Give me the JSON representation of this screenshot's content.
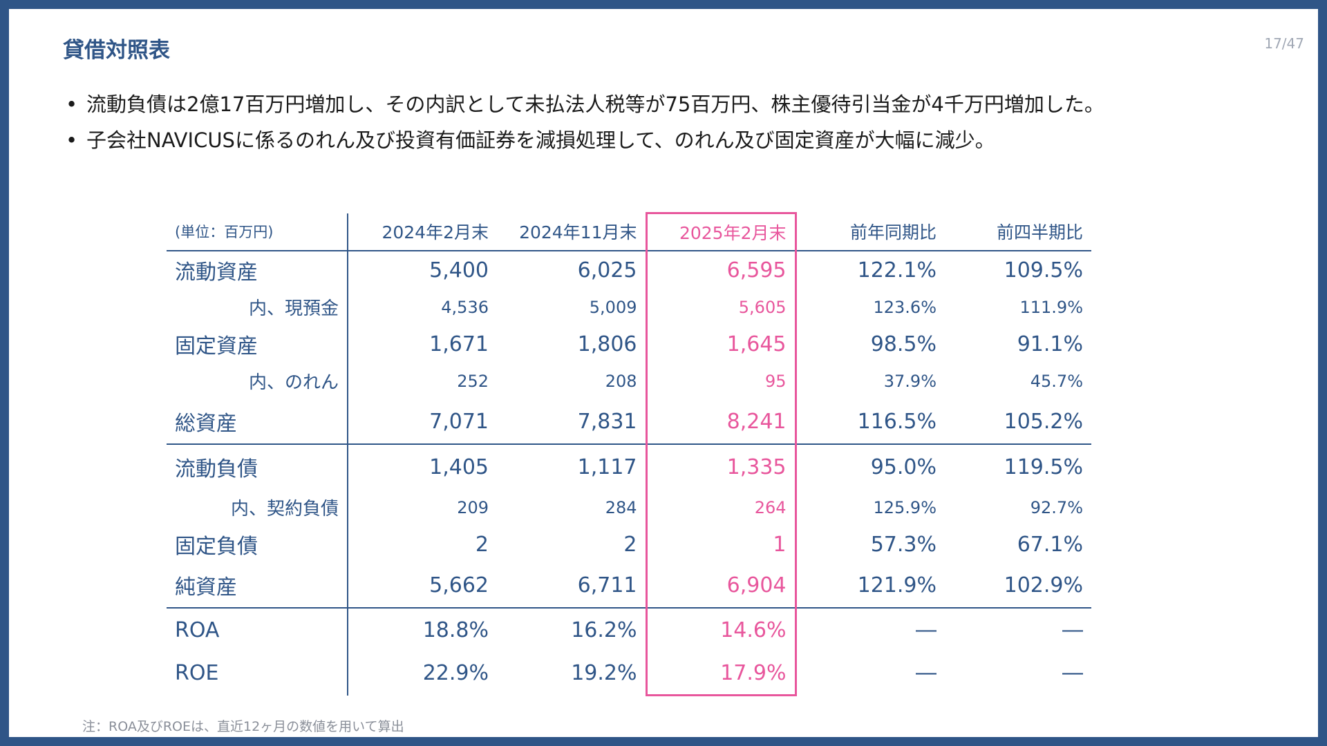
{
  "title": "貸借対照表",
  "page_number": "17/47",
  "bullets": [
    "流動負債は2億17百万円増加し、その内訳として未払法人税等が75百万円、株主優待引当金が4千万円増加した。",
    "子会社NAVICUSに係るのれん及び投資有価証券を減損処理して、のれん及び固定資産が大幅に減少。"
  ],
  "table": {
    "header": [
      "(単位：百万円)",
      "2024年2月末",
      "2024年11月末",
      "2025年2月末",
      "前年同期比",
      "前四半期比"
    ],
    "highlight_color": "#e8569c",
    "rows": [
      {
        "label": "流動資産",
        "values": [
          "5,400",
          "6,025",
          "6,595",
          "122.1%",
          "109.5%"
        ]
      },
      {
        "label": "内、現預金",
        "values": [
          "4,536",
          "5,009",
          "5,605",
          "123.6%",
          "111.9%"
        ]
      },
      {
        "label": "固定資産",
        "values": [
          "1,671",
          "1,806",
          "1,645",
          "98.5%",
          "91.1%"
        ]
      },
      {
        "label": "内、のれん",
        "values": [
          "252",
          "208",
          "95",
          "37.9%",
          "45.7%"
        ]
      },
      {
        "label": "総資産",
        "values": [
          "7,071",
          "7,831",
          "8,241",
          "116.5%",
          "105.2%"
        ]
      },
      {
        "label": "流動負債",
        "values": [
          "1,405",
          "1,117",
          "1,335",
          "95.0%",
          "119.5%"
        ]
      },
      {
        "label": "内、契約負債",
        "values": [
          "209",
          "284",
          "264",
          "125.9%",
          "92.7%"
        ]
      },
      {
        "label": "固定負債",
        "values": [
          "2",
          "2",
          "1",
          "57.3%",
          "67.1%"
        ]
      },
      {
        "label": "純資産",
        "values": [
          "5,662",
          "6,711",
          "6,904",
          "121.9%",
          "102.9%"
        ]
      },
      {
        "label": "ROA",
        "values": [
          "18.8%",
          "16.2%",
          "14.6%",
          "―",
          "―"
        ]
      },
      {
        "label": "ROE",
        "values": [
          "22.9%",
          "19.2%",
          "17.9%",
          "―",
          "―"
        ]
      }
    ]
  },
  "note": "注：ROA及びROEは、直近12ヶ月の数値を用いて算出"
}
